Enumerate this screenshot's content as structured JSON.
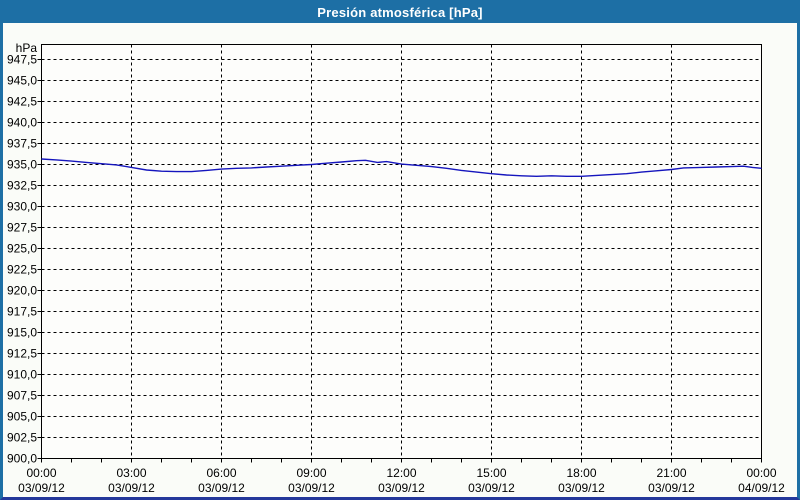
{
  "window": {
    "title": "Presión atmosférica [hPa]"
  },
  "colors": {
    "titlebar_bg": "#1d6fa5",
    "titlebar_text": "#ffffff",
    "frame": "#1d6fa5",
    "frame_bottom": "#24389b",
    "background": "#fafcf8",
    "plot_background": "#fdfdfb",
    "grid": "#000000",
    "axis": "#000000",
    "line": "#1515bd"
  },
  "chart_data": {
    "type": "line",
    "title": "Presión atmosférica [hPa]",
    "unit_label": "hPa",
    "ylim": [
      900,
      949.4
    ],
    "ymax_tick": 947.5,
    "ytick_step": 2.5,
    "ytick_labels": [
      "947,5",
      "945,0",
      "942,5",
      "940,0",
      "937,5",
      "935,0",
      "932,5",
      "930,0",
      "927,5",
      "925,0",
      "922,5",
      "920,0",
      "917,5",
      "915,0",
      "912,5",
      "910,0",
      "907,5",
      "905,0",
      "902,5",
      "900,0"
    ],
    "grid": "dashed",
    "legend_position": "none",
    "x_hours_range": [
      0,
      24
    ],
    "xtick_step_hours": 3,
    "minor_xtick_hours": 1,
    "xticks": [
      {
        "time": "00:00",
        "date": "03/09/12"
      },
      {
        "time": "03:00",
        "date": "03/09/12"
      },
      {
        "time": "06:00",
        "date": "03/09/12"
      },
      {
        "time": "09:00",
        "date": "03/09/12"
      },
      {
        "time": "12:00",
        "date": "03/09/12"
      },
      {
        "time": "15:00",
        "date": "03/09/12"
      },
      {
        "time": "18:00",
        "date": "03/09/12"
      },
      {
        "time": "21:00",
        "date": "03/09/12"
      },
      {
        "time": "00:00",
        "date": "04/09/12"
      }
    ],
    "series": [
      {
        "name": "Presión atmosférica",
        "color": "#1515bd",
        "points": [
          [
            0,
            935.65
          ],
          [
            0.5,
            935.55
          ],
          [
            1,
            935.4
          ],
          [
            1.5,
            935.25
          ],
          [
            2,
            935.1
          ],
          [
            2.5,
            934.95
          ],
          [
            3,
            934.65
          ],
          [
            3.5,
            934.35
          ],
          [
            4,
            934.2
          ],
          [
            4.5,
            934.15
          ],
          [
            5,
            934.15
          ],
          [
            5.5,
            934.3
          ],
          [
            6,
            934.45
          ],
          [
            6.5,
            934.55
          ],
          [
            7,
            934.6
          ],
          [
            7.5,
            934.7
          ],
          [
            8,
            934.8
          ],
          [
            8.5,
            934.9
          ],
          [
            9,
            935.0
          ],
          [
            9.5,
            935.15
          ],
          [
            10,
            935.3
          ],
          [
            10.5,
            935.45
          ],
          [
            10.8,
            935.5
          ],
          [
            11.2,
            935.25
          ],
          [
            11.5,
            935.35
          ],
          [
            12,
            935.05
          ],
          [
            12.5,
            934.9
          ],
          [
            13,
            934.75
          ],
          [
            13.5,
            934.55
          ],
          [
            14,
            934.3
          ],
          [
            14.5,
            934.1
          ],
          [
            15,
            933.9
          ],
          [
            15.5,
            933.75
          ],
          [
            16,
            933.65
          ],
          [
            16.5,
            933.6
          ],
          [
            17,
            933.65
          ],
          [
            17.5,
            933.6
          ],
          [
            18,
            933.6
          ],
          [
            18.5,
            933.7
          ],
          [
            19,
            933.8
          ],
          [
            19.5,
            933.9
          ],
          [
            20,
            934.1
          ],
          [
            20.5,
            934.25
          ],
          [
            21,
            934.4
          ],
          [
            21.4,
            934.6
          ],
          [
            22,
            934.65
          ],
          [
            22.5,
            934.7
          ],
          [
            23,
            934.75
          ],
          [
            23.4,
            934.8
          ],
          [
            23.7,
            934.65
          ],
          [
            24,
            934.55
          ]
        ]
      }
    ]
  }
}
